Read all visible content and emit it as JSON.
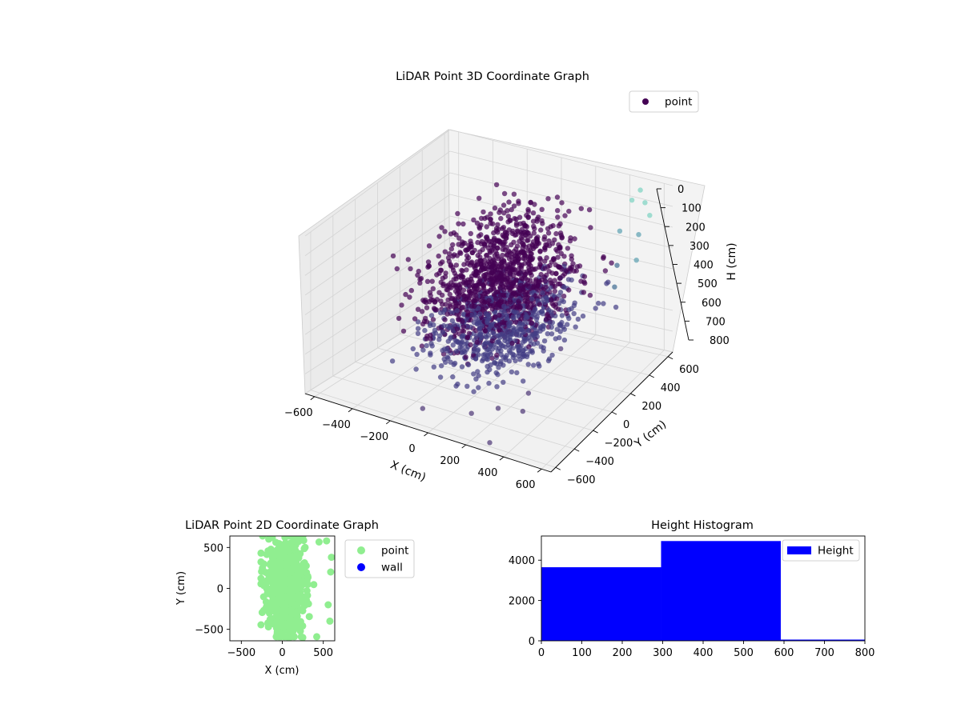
{
  "colors": {
    "scatter3d_low": "#440154",
    "scatter3d_mid": "#433d84",
    "scatter3d_high": "#7ad2c0",
    "point2d": "#90ee90",
    "wall2d": "#0000ff",
    "hist_bar": "#0000ff"
  },
  "chart_data": [
    {
      "type": "scatter",
      "projection": "3d",
      "title": "LiDAR Point 3D Coordinate Graph",
      "xlabel": "X (cm)",
      "ylabel": "Y (cm)",
      "zlabel": "H (cm)",
      "xlim": [
        -650,
        650
      ],
      "ylim": [
        -650,
        650
      ],
      "zlim": [
        800,
        0
      ],
      "xticks": [
        -600,
        -400,
        -200,
        0,
        200,
        400,
        600
      ],
      "yticks": [
        -600,
        -400,
        -200,
        0,
        200,
        400,
        600
      ],
      "zticks": [
        0,
        100,
        200,
        300,
        400,
        500,
        600,
        700,
        800
      ],
      "legend": {
        "position": "upper-right",
        "entries": [
          "point"
        ]
      },
      "series": [
        {
          "name": "point",
          "colormap": "viridis",
          "cluster_core": {
            "x_range": [
              -250,
              350
            ],
            "y_range": [
              -550,
              550
            ],
            "h_range": [
              300,
              590
            ]
          },
          "cluster_upper": {
            "x_range": [
              -300,
              300
            ],
            "y_range": [
              -500,
              500
            ],
            "h_range": [
              80,
              300
            ]
          },
          "outliers": [
            {
              "x": 500,
              "y": 580,
              "h": 20
            },
            {
              "x": 560,
              "y": 520,
              "h": 40
            },
            {
              "x": 620,
              "y": 460,
              "h": 60
            },
            {
              "x": 440,
              "y": 600,
              "h": 90
            },
            {
              "x": 600,
              "y": 380,
              "h": 120
            },
            {
              "x": 470,
              "y": 420,
              "h": 150
            },
            {
              "x": 630,
              "y": 300,
              "h": 200
            },
            {
              "x": 520,
              "y": 300,
              "h": 250
            },
            {
              "x": 560,
              "y": 200,
              "h": 300
            },
            {
              "x": 610,
              "y": 120,
              "h": 350
            },
            {
              "x": 480,
              "y": 150,
              "h": 400
            },
            {
              "x": 420,
              "y": -100,
              "h": 500
            },
            {
              "x": 350,
              "y": -300,
              "h": 650
            },
            {
              "x": 250,
              "y": -420,
              "h": 700
            },
            {
              "x": 150,
              "y": -500,
              "h": 720
            },
            {
              "x": -100,
              "y": -520,
              "h": 760
            },
            {
              "x": 300,
              "y": -600,
              "h": 780
            },
            {
              "x": 450,
              "y": -550,
              "h": 600
            }
          ]
        }
      ]
    },
    {
      "type": "scatter",
      "title": "LiDAR Point 2D Coordinate Graph",
      "xlabel": "X (cm)",
      "ylabel": "Y (cm)",
      "xlim": [
        -640,
        640
      ],
      "ylim": [
        -640,
        640
      ],
      "xticks": [
        -500,
        0,
        500
      ],
      "yticks": [
        -500,
        0,
        500
      ],
      "legend": {
        "position": "outside-right",
        "entries": [
          "point",
          "wall"
        ]
      },
      "series": [
        {
          "name": "point",
          "cloud": {
            "x_range": [
              -260,
              460
            ],
            "y_range": [
              -590,
              640
            ],
            "center_x": 50,
            "center_y": 0
          },
          "outliers": [
            {
              "x": 540,
              "y": 580
            },
            {
              "x": 600,
              "y": 380
            },
            {
              "x": 590,
              "y": 200
            },
            {
              "x": 560,
              "y": -200
            },
            {
              "x": 580,
              "y": -400
            },
            {
              "x": 420,
              "y": -590
            },
            {
              "x": 250,
              "y": -600
            },
            {
              "x": 60,
              "y": -590
            },
            {
              "x": -240,
              "y": 640
            }
          ]
        },
        {
          "name": "wall",
          "points": []
        }
      ]
    },
    {
      "type": "bar",
      "subtype": "histogram",
      "title": "Height Histogram",
      "xlim": [
        0,
        800
      ],
      "ylim": [
        0,
        5200
      ],
      "xticks": [
        0,
        100,
        200,
        300,
        400,
        500,
        600,
        700,
        800
      ],
      "yticks": [
        0,
        2000,
        4000
      ],
      "legend": {
        "position": "upper-right",
        "entries": [
          "Height"
        ]
      },
      "bins": [
        {
          "start": 0,
          "end": 296,
          "count": 3650
        },
        {
          "start": 296,
          "end": 592,
          "count": 4950
        },
        {
          "start": 592,
          "end": 800,
          "count": 60
        }
      ],
      "series": [
        {
          "name": "Height"
        }
      ]
    }
  ]
}
